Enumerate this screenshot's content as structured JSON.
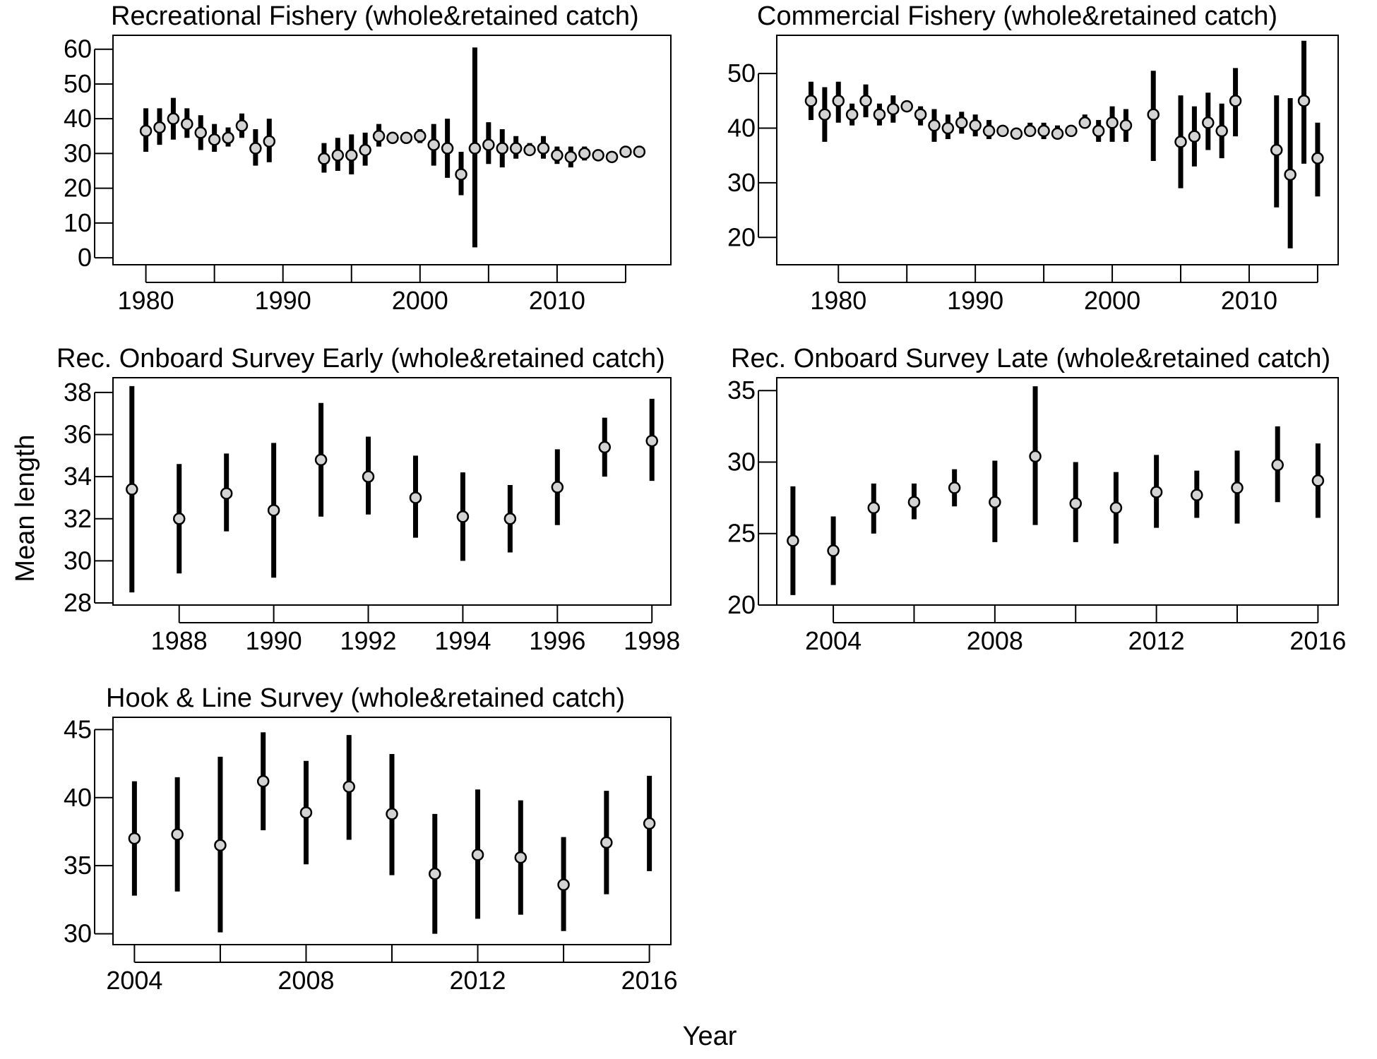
{
  "figure": {
    "xlabel": "Year",
    "ylabel": "Mean length",
    "marker_fill": "#d3d3d3",
    "line_color": "#000000"
  },
  "chart_data": [
    {
      "type": "scatter",
      "title": "Recreational Fishery (whole&retained catch)",
      "xlim": [
        1977.6,
        2018.3
      ],
      "ylim": [
        -2,
        64
      ],
      "xticks": [
        1980,
        1985,
        1990,
        1995,
        2000,
        2005,
        2010,
        2015
      ],
      "xtick_labels": [
        "1980",
        "",
        "1990",
        "",
        "2000",
        "",
        "2010",
        ""
      ],
      "yticks": [
        0,
        10,
        20,
        30,
        40,
        50,
        60
      ],
      "ytick_labels": [
        "0",
        "10",
        "20",
        "30",
        "40",
        "50",
        "60"
      ],
      "x": [
        1980,
        1981,
        1982,
        1983,
        1984,
        1985,
        1986,
        1987,
        1988,
        1989,
        1993,
        1994,
        1995,
        1996,
        1997,
        1998,
        1999,
        2000,
        2001,
        2002,
        2003,
        2004,
        2005,
        2006,
        2007,
        2008,
        2009,
        2010,
        2011,
        2012,
        2013,
        2014,
        2015,
        2016
      ],
      "y": [
        36.5,
        37.5,
        40,
        38.5,
        36,
        34,
        34.5,
        38,
        31.5,
        33.5,
        28.5,
        29.5,
        29.5,
        31,
        35,
        34.5,
        34.5,
        35,
        32.5,
        31.5,
        24,
        31.5,
        32.5,
        31.5,
        31.5,
        31,
        31.5,
        29.5,
        29,
        30,
        29.5,
        29,
        30.5,
        30.5
      ],
      "lower": [
        30.5,
        32.5,
        34,
        34.5,
        31,
        30.5,
        32,
        34.5,
        26.5,
        27.5,
        24.5,
        25,
        24,
        26.5,
        32,
        34,
        34,
        33,
        26.5,
        23,
        18,
        3,
        27,
        26,
        28.5,
        29.5,
        28.5,
        27,
        26,
        28,
        28.5,
        28.5,
        29.5,
        30
      ],
      "upper": [
        43,
        43,
        46,
        43,
        41,
        38.5,
        37.5,
        41.5,
        37,
        40,
        33,
        34.5,
        35.5,
        36,
        38.5,
        35.5,
        35.5,
        37,
        38.5,
        40,
        30.5,
        60.5,
        39,
        37,
        35,
        33,
        35,
        32,
        32,
        32,
        31,
        30,
        31.5,
        31.5
      ]
    },
    {
      "type": "scatter",
      "title": "Commercial Fishery (whole&retained catch)",
      "xlim": [
        1975.5,
        2016.5
      ],
      "ylim": [
        15,
        57
      ],
      "xticks": [
        1980,
        1985,
        1990,
        1995,
        2000,
        2005,
        2010,
        2015
      ],
      "xtick_labels": [
        "1980",
        "",
        "1990",
        "",
        "2000",
        "",
        "2010",
        ""
      ],
      "yticks": [
        20,
        30,
        40,
        50
      ],
      "ytick_labels": [
        "20",
        "30",
        "40",
        "50"
      ],
      "x": [
        1978,
        1979,
        1980,
        1981,
        1982,
        1983,
        1984,
        1985,
        1986,
        1987,
        1988,
        1989,
        1990,
        1991,
        1992,
        1993,
        1994,
        1995,
        1996,
        1997,
        1998,
        1999,
        2000,
        2001,
        2003,
        2005,
        2006,
        2007,
        2008,
        2009,
        2012,
        2013,
        2014,
        2015
      ],
      "y": [
        45,
        42.5,
        45,
        42.5,
        45,
        42.5,
        43.5,
        44,
        42.5,
        40.5,
        40,
        41,
        40.5,
        39.5,
        39.5,
        39,
        39.5,
        39.5,
        39,
        39.5,
        41,
        39.5,
        41,
        40.5,
        42.5,
        37.5,
        38.5,
        41,
        39.5,
        45,
        36,
        31.5,
        45,
        34.5
      ],
      "lower": [
        41.5,
        37.5,
        41,
        40.5,
        42,
        40.5,
        41,
        43,
        40.5,
        37.5,
        38,
        39,
        38.5,
        38,
        38.5,
        38.5,
        38.5,
        38,
        38,
        38.5,
        40,
        37.5,
        37.5,
        37.5,
        34,
        29,
        33,
        36,
        34.5,
        38.5,
        25.5,
        18,
        33.5,
        27.5
      ],
      "upper": [
        48.5,
        47.5,
        48.5,
        44.5,
        48,
        44.5,
        46,
        45,
        44,
        43.5,
        42.5,
        43,
        42.5,
        41.5,
        40.5,
        39.5,
        41,
        41,
        40.5,
        40.5,
        42.5,
        41.5,
        44,
        43.5,
        50.5,
        46,
        44,
        46.5,
        44.5,
        51,
        46,
        45.5,
        56,
        41
      ]
    },
    {
      "type": "scatter",
      "title": "Rec. Onboard Survey Early (whole&retained catch)",
      "xlim": [
        1986.6,
        1998.4
      ],
      "ylim": [
        27.9,
        38.7
      ],
      "xticks": [
        1988,
        1990,
        1992,
        1994,
        1996,
        1998
      ],
      "xtick_labels": [
        "1988",
        "1990",
        "1992",
        "1994",
        "1996",
        "1998"
      ],
      "yticks": [
        28,
        30,
        32,
        34,
        36,
        38
      ],
      "ytick_labels": [
        "28",
        "30",
        "32",
        "34",
        "36",
        "38"
      ],
      "x": [
        1987,
        1988,
        1989,
        1990,
        1991,
        1992,
        1993,
        1994,
        1995,
        1996,
        1997,
        1998
      ],
      "y": [
        33.4,
        32,
        33.2,
        32.4,
        34.8,
        34,
        33,
        32.1,
        32,
        33.5,
        35.4,
        35.7
      ],
      "lower": [
        28.5,
        29.4,
        31.4,
        29.2,
        32.1,
        32.2,
        31.1,
        30,
        30.4,
        31.7,
        34,
        33.8
      ],
      "upper": [
        38.3,
        34.6,
        35.1,
        35.6,
        37.5,
        35.9,
        35,
        34.2,
        33.6,
        35.3,
        36.8,
        37.7
      ]
    },
    {
      "type": "scatter",
      "title": "Rec. Onboard Survey Late (whole&retained catch)",
      "xlim": [
        2002.6,
        2016.5
      ],
      "ylim": [
        20,
        35.9
      ],
      "xticks": [
        2004,
        2006,
        2008,
        2010,
        2012,
        2014,
        2016
      ],
      "xtick_labels": [
        "2004",
        "",
        "2008",
        "",
        "2012",
        "",
        "2016"
      ],
      "yticks": [
        20,
        25,
        30,
        35
      ],
      "ytick_labels": [
        "20",
        "25",
        "30",
        "35"
      ],
      "x": [
        2003,
        2004,
        2005,
        2006,
        2007,
        2008,
        2009,
        2010,
        2011,
        2012,
        2013,
        2014,
        2015,
        2016
      ],
      "y": [
        24.5,
        23.8,
        26.8,
        27.2,
        28.2,
        27.2,
        30.4,
        27.1,
        26.8,
        27.9,
        27.7,
        28.2,
        29.8,
        28.7
      ],
      "lower": [
        20.7,
        21.4,
        25,
        26,
        26.9,
        24.4,
        25.6,
        24.4,
        24.3,
        25.4,
        26.1,
        25.7,
        27.2,
        26.1
      ],
      "upper": [
        28.3,
        26.2,
        28.5,
        28.5,
        29.5,
        30.1,
        35.3,
        30,
        29.3,
        30.5,
        29.4,
        30.8,
        32.5,
        31.3
      ]
    },
    {
      "type": "scatter",
      "title": "Hook & Line Survey (whole&retained catch)",
      "xlim": [
        2003.5,
        2016.5
      ],
      "ylim": [
        29.2,
        45.9
      ],
      "xticks": [
        2004,
        2006,
        2008,
        2010,
        2012,
        2014,
        2016
      ],
      "xtick_labels": [
        "2004",
        "",
        "2008",
        "",
        "2012",
        "",
        "2016"
      ],
      "yticks": [
        30,
        35,
        40,
        45
      ],
      "ytick_labels": [
        "30",
        "35",
        "40",
        "45"
      ],
      "x": [
        2004,
        2005,
        2006,
        2007,
        2008,
        2009,
        2010,
        2011,
        2012,
        2013,
        2014,
        2015,
        2016
      ],
      "y": [
        37,
        37.3,
        36.5,
        41.2,
        38.9,
        40.8,
        38.8,
        34.4,
        35.8,
        35.6,
        33.6,
        36.7,
        38.1
      ],
      "lower": [
        32.8,
        33.1,
        30.1,
        37.6,
        35.1,
        36.9,
        34.3,
        30,
        31.1,
        31.4,
        30.2,
        32.9,
        34.6
      ],
      "upper": [
        41.2,
        41.5,
        43,
        44.8,
        42.7,
        44.6,
        43.2,
        38.8,
        40.6,
        39.8,
        37.1,
        40.5,
        41.6
      ]
    }
  ]
}
